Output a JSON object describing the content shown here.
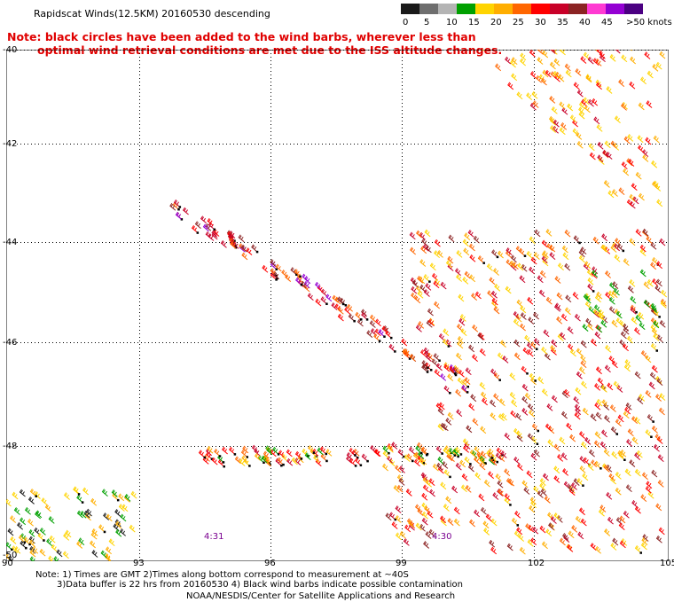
{
  "header": {
    "title": "Rapidscat Winds(12.5KM) 20160530 descending",
    "note_line1": "Note: black circles have been added to the wind barbs, wherever less than",
    "note_line2": "optimal wind retrieval conditions are met due to the ISS altitude changes."
  },
  "colorbar": {
    "colors": [
      "#1a1a1a",
      "#6e6e6e",
      "#b4b4b4",
      "#00a000",
      "#ffd400",
      "#ffae00",
      "#ff6600",
      "#ff0000",
      "#c80028",
      "#8b2323",
      "#ff3ad2",
      "#9400d3",
      "#4b0082"
    ],
    "labels": [
      "0",
      "5",
      "10",
      "15",
      "20",
      "25",
      "30",
      "35",
      "40",
      "45",
      ">50 knots"
    ]
  },
  "map": {
    "lat_labels": [
      "-40",
      "-42",
      "-44",
      "-46",
      "-48",
      "-50"
    ],
    "lon_labels": [
      "90",
      "93",
      "96",
      "99",
      "102",
      "105"
    ],
    "time_labels": [
      "4:31",
      "4:30"
    ]
  },
  "footer": {
    "line1": "Note: 1) Times are GMT 2)Times along bottom correspond to measurement at ~40S",
    "line2": "3)Data buffer is 22 hrs from 20160530 4) Black wind barbs indicate possible contamination",
    "line3": "NOAA/NESDIS/Center for Satellite Applications and Research"
  }
}
